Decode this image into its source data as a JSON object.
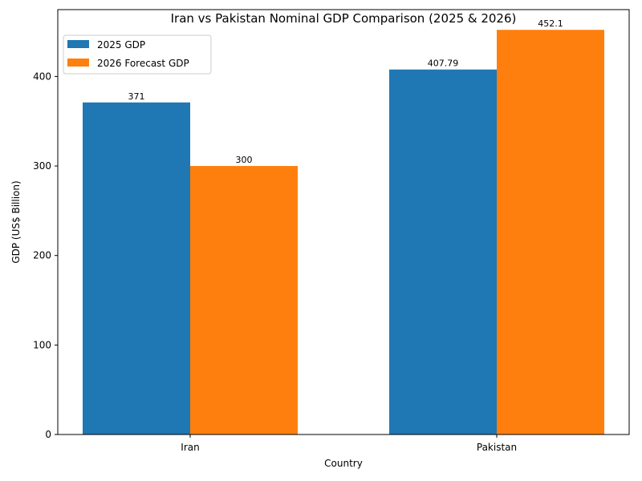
{
  "chart_data": {
    "type": "bar",
    "title": "Iran vs Pakistan Nominal GDP Comparison (2025 & 2026)",
    "xlabel": "Country",
    "ylabel": "GDP (US$ Billion)",
    "categories": [
      "Iran",
      "Pakistan"
    ],
    "series": [
      {
        "name": "2025 GDP",
        "values": [
          371,
          407.79
        ],
        "labels": [
          "371",
          "407.79"
        ],
        "color": "#1f77b4"
      },
      {
        "name": "2026 Forecast GDP",
        "values": [
          300,
          452.1
        ],
        "labels": [
          "300",
          "452.1"
        ],
        "color": "#ff7f0e"
      }
    ],
    "ylim": [
      0,
      474.705
    ],
    "yticks": [
      0,
      100,
      200,
      300,
      400
    ],
    "grid": false,
    "legend_position": "top-left"
  }
}
